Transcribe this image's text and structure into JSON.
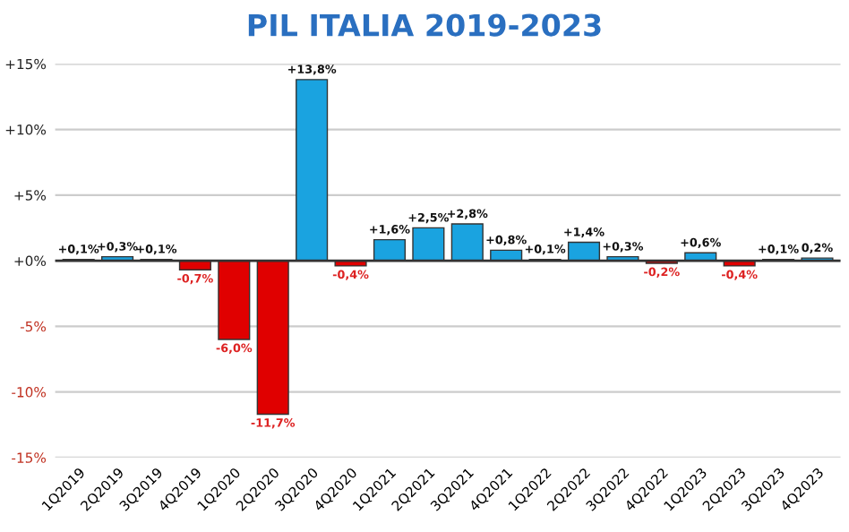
{
  "chart_data": {
    "type": "bar",
    "title": "PIL ITALIA 2019-2023",
    "categories": [
      "1Q2019",
      "2Q2019",
      "3Q2019",
      "4Q2019",
      "1Q2020",
      "2Q2020",
      "3Q2020",
      "4Q2020",
      "1Q2021",
      "2Q2021",
      "3Q2021",
      "4Q2021",
      "1Q2022",
      "2Q2022",
      "3Q2022",
      "4Q2022",
      "1Q2023",
      "2Q2023",
      "3Q2023",
      "4Q2023"
    ],
    "values": [
      0.1,
      0.3,
      0.1,
      -0.7,
      -6.0,
      -11.7,
      13.8,
      -0.4,
      1.6,
      2.5,
      2.8,
      0.8,
      0.1,
      1.4,
      0.3,
      -0.2,
      0.6,
      -0.4,
      0.1,
      0.2
    ],
    "colors": [
      "#1aa3e0",
      "#1aa3e0",
      "#1aa3e0",
      "#e00000",
      "#e00000",
      "#e00000",
      "#1aa3e0",
      "#e00000",
      "#1aa3e0",
      "#1aa3e0",
      "#1aa3e0",
      "#1aa3e0",
      "#1aa3e0",
      "#1aa3e0",
      "#1aa3e0",
      "#e00000",
      "#1aa3e0",
      "#e00000",
      "#1aa3e0",
      "#1aa3e0"
    ],
    "value_labels": [
      "+0,1%",
      "+0,3%",
      "+0,1%",
      "-0,7%",
      "-6,0%",
      "-11,7%",
      "+13,8%",
      "-0,4%",
      "+1,6%",
      "+2,5%",
      "+2,8%",
      "+0,8%",
      "+0,1%",
      "+1,4%",
      "+0,3%",
      "-0,2%",
      "+0,6%",
      "-0,4%",
      "+0,1%",
      "0,2%"
    ],
    "ylim": [
      -15,
      15
    ],
    "yticks": [
      {
        "value": -15,
        "label": "-15%"
      },
      {
        "value": -10,
        "label": "-10%"
      },
      {
        "value": -5,
        "label": "-5%"
      },
      {
        "value": 0,
        "label": "+0%"
      },
      {
        "value": 5,
        "label": "+5%"
      },
      {
        "value": 10,
        "label": "+10%"
      },
      {
        "value": 15,
        "label": "+15%"
      }
    ],
    "grid": "y",
    "legend": false
  }
}
